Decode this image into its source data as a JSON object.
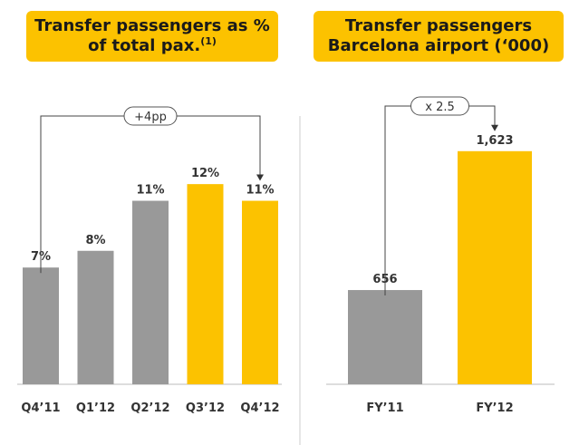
{
  "chart_data": [
    {
      "type": "bar",
      "title_main": "Transfer passengers as % of total pax.",
      "title_sup": "(1)",
      "categories": [
        "Q4’11",
        "Q1’12",
        "Q2’12",
        "Q3’12",
        "Q4’12"
      ],
      "values": [
        7,
        8,
        11,
        12,
        11
      ],
      "labels": [
        "7%",
        "8%",
        "11%",
        "12%",
        "11%"
      ],
      "colors": [
        "#999999",
        "#999999",
        "#999999",
        "#fcc200",
        "#fcc200"
      ],
      "ylim": [
        0,
        16.3
      ],
      "annotation": {
        "text": "+4pp",
        "from": 0,
        "to": 4
      }
    },
    {
      "type": "bar",
      "title_main": "Transfer passengers Barcelona airport (‘000)",
      "categories": [
        "FY’11",
        "FY’12"
      ],
      "values": [
        656,
        1623
      ],
      "labels": [
        "656",
        "1,623"
      ],
      "colors": [
        "#999999",
        "#fcc200"
      ],
      "ylim": [
        0,
        1893
      ],
      "annotation": {
        "text": "x 2.5",
        "from": 0,
        "to": 1
      }
    }
  ]
}
